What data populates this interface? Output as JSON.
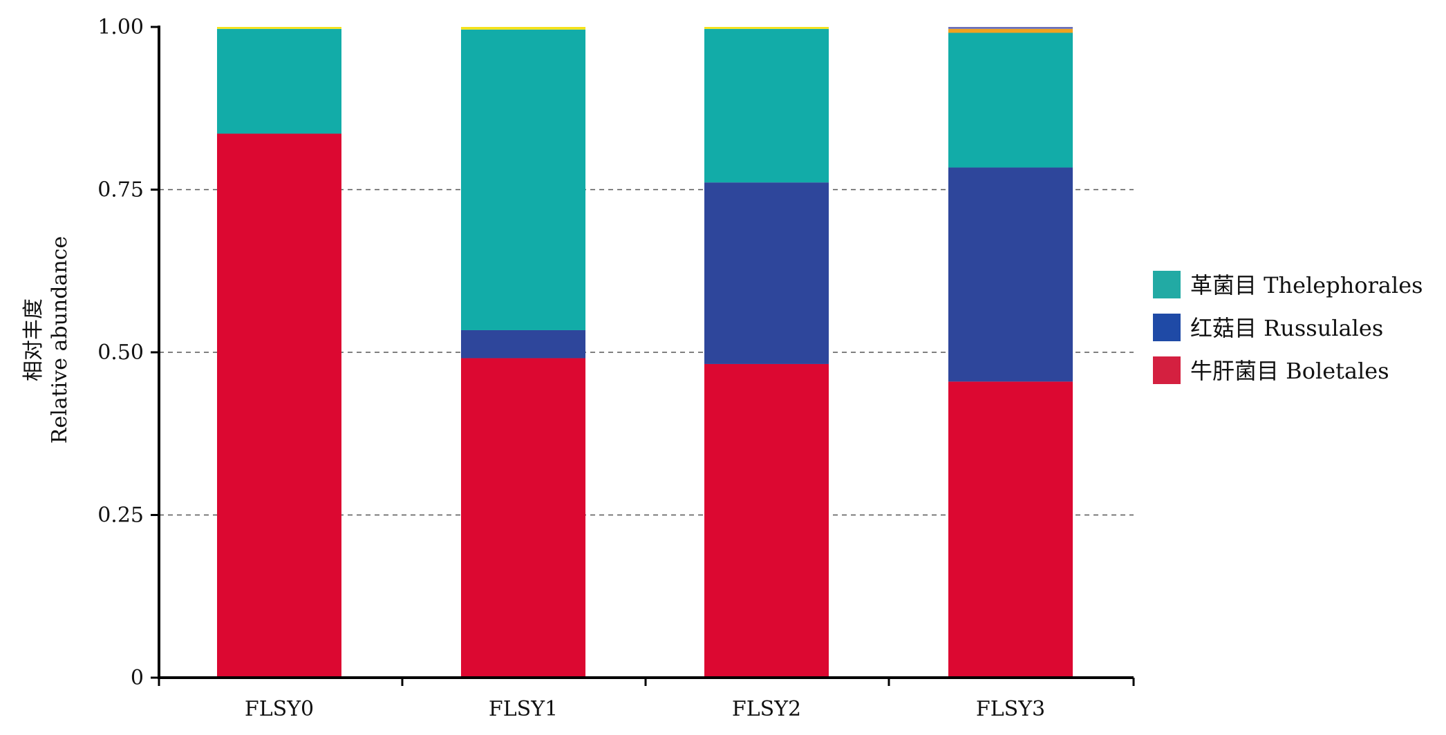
{
  "chart_data": {
    "type": "bar",
    "stacked": true,
    "categories": [
      "FLSY0",
      "FLSY1",
      "FLSY2",
      "FLSY3"
    ],
    "ylabel_zh": "相对丰度",
    "ylabel_en": "Relative abundance",
    "xlabel": "",
    "ylim": [
      0,
      1.0
    ],
    "yticks": [
      0,
      0.25,
      0.5,
      0.75,
      1.0
    ],
    "ytick_labels": [
      "0",
      "0.25",
      "0.50",
      "0.75",
      "1.00"
    ],
    "grid": "horizontal-dashed",
    "legend_position": "right",
    "series": [
      {
        "name": "牛肝菌目 Boletales",
        "color": "#dc0831",
        "legend_color": "#d42040",
        "values": [
          0.836,
          0.491,
          0.482,
          0.455
        ]
      },
      {
        "name": "红菇目 Russulales",
        "color": "#2e469b",
        "legend_color": "#1f4aa6",
        "values": [
          0.0,
          0.043,
          0.279,
          0.329
        ]
      },
      {
        "name": "革菌目 Thelephorales",
        "color": "#12aca8",
        "legend_color": "#22aaa4",
        "values": [
          0.161,
          0.462,
          0.236,
          0.207
        ]
      },
      {
        "name": "",
        "color": "#f1a21f",
        "legend_color": "#f1a21f",
        "values": [
          0.0,
          0.0,
          0.0,
          0.006
        ]
      },
      {
        "name": "",
        "color": "#f5e21a",
        "legend_color": "#f5e21a",
        "values": [
          0.003,
          0.004,
          0.003,
          0.0
        ]
      },
      {
        "name": "",
        "color": "#6a6fb8",
        "legend_color": "#6a6fb8",
        "values": [
          0.0,
          0.0,
          0.0,
          0.003
        ]
      }
    ],
    "legend_order": [
      2,
      1,
      0
    ]
  }
}
